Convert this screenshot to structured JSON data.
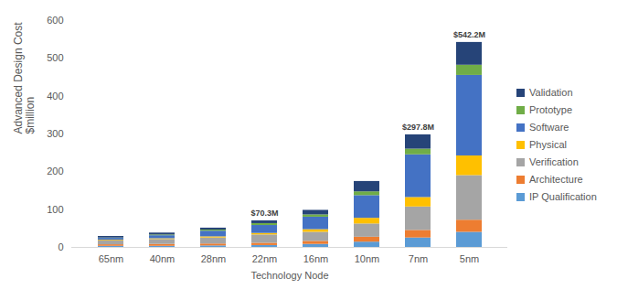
{
  "chart_data": {
    "type": "bar",
    "stacked": true,
    "xlabel": "Technology Node",
    "ylabel": "Advanced Design Cost\n$million",
    "categories": [
      "65nm",
      "40nm",
      "28nm",
      "22nm",
      "16nm",
      "10nm",
      "7nm",
      "5nm"
    ],
    "series": [
      {
        "name": "IP Qualification",
        "color": "#5b9bd5",
        "values": [
          3,
          3,
          4,
          5,
          8,
          14,
          25,
          40
        ]
      },
      {
        "name": "Architecture",
        "color": "#ed7d31",
        "values": [
          4,
          5,
          5,
          6,
          8,
          13,
          20,
          32
        ]
      },
      {
        "name": "Verification",
        "color": "#a5a5a5",
        "values": [
          10,
          13,
          16,
          22,
          24,
          35,
          62,
          118
        ]
      },
      {
        "name": "Physical",
        "color": "#ffc000",
        "values": [
          2,
          2,
          3,
          4,
          7,
          15,
          25,
          52
        ]
      },
      {
        "name": "Software",
        "color": "#4472c4",
        "values": [
          5,
          8,
          15,
          21,
          33,
          60,
          113,
          213
        ]
      },
      {
        "name": "Prototype",
        "color": "#70ad47",
        "values": [
          1,
          2,
          3,
          5,
          6,
          10,
          15,
          27
        ]
      },
      {
        "name": "Validation",
        "color": "#264478",
        "values": [
          4,
          5,
          5,
          7.3,
          12,
          27.4,
          37.8,
          60.2
        ]
      }
    ],
    "annotations": [
      {
        "x": "22nm",
        "text": "$70.3M"
      },
      {
        "x": "7nm",
        "text": "$297.8M"
      },
      {
        "x": "5nm",
        "text": "$542.2M"
      }
    ],
    "ylim": [
      0,
      600
    ],
    "yticks": [
      0,
      100,
      200,
      300,
      400,
      500,
      600
    ],
    "grid": false,
    "legend": "right"
  }
}
